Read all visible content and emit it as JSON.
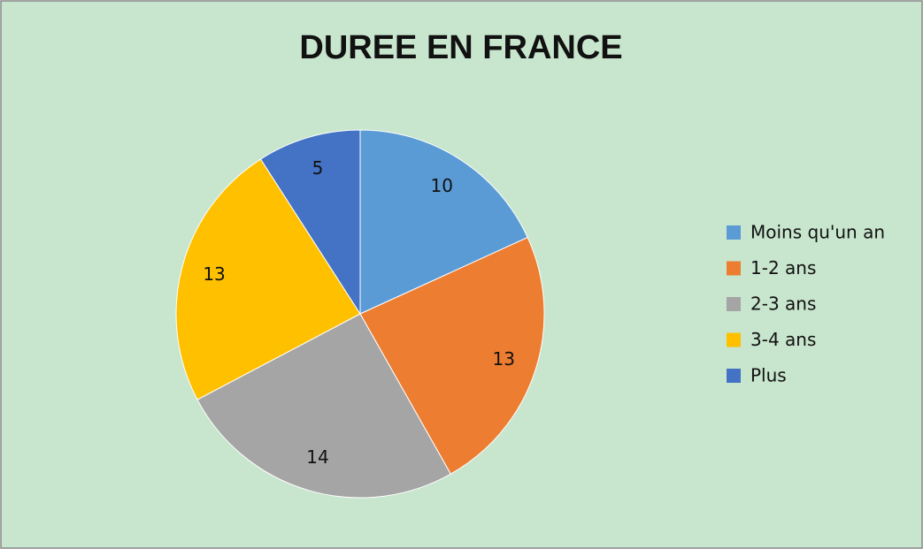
{
  "chart_data": {
    "type": "pie",
    "title": "DUREE EN FRANCE",
    "categories": [
      "Moins qu'un an",
      "1-2 ans",
      "2-3 ans",
      "3-4 ans",
      "Plus"
    ],
    "values": [
      10,
      13,
      14,
      13,
      5
    ],
    "colors": [
      "#5b9bd5",
      "#ed7d31",
      "#a5a5a5",
      "#ffc000",
      "#4472c4"
    ],
    "legend": "right"
  }
}
